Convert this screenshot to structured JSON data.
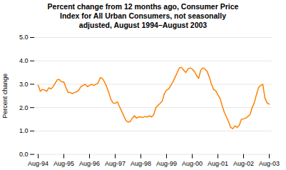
{
  "chart_data": {
    "type": "line",
    "title": "Percent change from 12 months ago, Consumer Price\nIndex for All Urban Consumers, not seasonally\nadjusted, August 1994–August 2003",
    "ylabel": "Percent change",
    "color": "#FF8000",
    "grid": true,
    "ylim": [
      0.0,
      5.0
    ],
    "yticks": [
      {
        "value": 0.0,
        "label": "0.0"
      },
      {
        "value": 1.0,
        "label": "1.0"
      },
      {
        "value": 2.0,
        "label": "2.0"
      },
      {
        "value": 3.0,
        "label": "3.0"
      },
      {
        "value": 4.0,
        "label": "4.0"
      },
      {
        "value": 5.0,
        "label": "5.0"
      }
    ],
    "categories": [
      "Aug-94",
      null,
      null,
      null,
      null,
      null,
      null,
      null,
      null,
      null,
      null,
      null,
      "Aug-95",
      null,
      null,
      null,
      null,
      null,
      null,
      null,
      null,
      null,
      null,
      null,
      "Aug-96",
      null,
      null,
      null,
      null,
      null,
      null,
      null,
      null,
      null,
      null,
      null,
      "Aug-97",
      null,
      null,
      null,
      null,
      null,
      null,
      null,
      null,
      null,
      null,
      null,
      "Aug-98",
      null,
      null,
      null,
      null,
      null,
      null,
      null,
      null,
      null,
      null,
      null,
      "Aug-99",
      null,
      null,
      null,
      null,
      null,
      null,
      null,
      null,
      null,
      null,
      null,
      "Aug-00",
      null,
      null,
      null,
      null,
      null,
      null,
      null,
      null,
      null,
      null,
      null,
      "Aug-01",
      null,
      null,
      null,
      null,
      null,
      null,
      null,
      null,
      null,
      null,
      null,
      "Aug-02",
      null,
      null,
      null,
      null,
      null,
      null,
      null,
      null,
      null,
      null,
      null,
      "Aug-03"
    ],
    "values": [
      2.96,
      2.7,
      2.78,
      2.75,
      2.7,
      2.85,
      2.8,
      2.9,
      3.05,
      3.2,
      3.2,
      3.1,
      3.1,
      2.85,
      2.65,
      2.65,
      2.6,
      2.65,
      2.68,
      2.75,
      2.9,
      2.95,
      3.0,
      2.9,
      2.95,
      3.0,
      2.95,
      3.0,
      3.05,
      3.28,
      3.25,
      3.1,
      2.9,
      2.65,
      2.35,
      2.2,
      2.18,
      2.25,
      2.05,
      1.85,
      1.65,
      1.45,
      1.38,
      1.4,
      1.55,
      1.65,
      1.55,
      1.6,
      1.6,
      1.58,
      1.62,
      1.6,
      1.65,
      1.6,
      1.7,
      2.0,
      2.1,
      2.18,
      2.28,
      2.6,
      2.75,
      2.8,
      2.95,
      3.1,
      3.3,
      3.5,
      3.7,
      3.72,
      3.6,
      3.5,
      3.65,
      3.7,
      3.65,
      3.55,
      3.38,
      3.25,
      3.6,
      3.7,
      3.65,
      3.55,
      3.3,
      3.0,
      2.78,
      2.72,
      2.55,
      2.4,
      2.08,
      1.8,
      1.6,
      1.4,
      1.15,
      1.1,
      1.22,
      1.15,
      1.25,
      1.5,
      1.52,
      1.55,
      1.62,
      1.7,
      2.0,
      2.2,
      2.55,
      2.85,
      2.95,
      3.0,
      2.4,
      2.2,
      2.15
    ]
  }
}
